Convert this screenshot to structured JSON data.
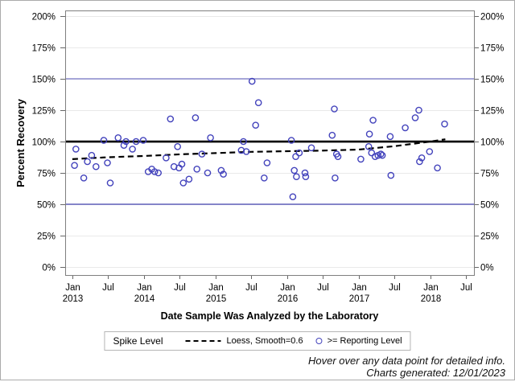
{
  "page": {
    "footer_line1": "Hover over any data point for detailed info.",
    "footer_line2": "Charts generated: 12/01/2023"
  },
  "legend": {
    "title": "Spike Level",
    "items": [
      {
        "swatch": "dashed-line",
        "label": "Loess, Smooth=0.6"
      },
      {
        "swatch": "open-circle",
        "label": ">= Reporting Level"
      }
    ]
  },
  "colors": {
    "marker": "#4343bc",
    "upper_limit_line": "#8b8bce",
    "lower_limit_line": "#6060bb",
    "spike_line": "#000000",
    "loess_line": "#000000",
    "grid": "#e9e9e9",
    "frame": "#7f7f7f",
    "tick": "#666666"
  },
  "chart_data": {
    "type": "scatter",
    "title": "",
    "xlabel": "Date Sample Was Analyzed by the Laboratory",
    "ylabel": "Percent Recovery",
    "xlim": [
      2012.9,
      2018.61
    ],
    "ylim": [
      -6.4,
      204.5
    ],
    "grid": true,
    "legend_position": "bottom",
    "y_ticks": [
      {
        "label": "0%",
        "value": 0
      },
      {
        "label": "25%",
        "value": 25
      },
      {
        "label": "50%",
        "value": 50
      },
      {
        "label": "75%",
        "value": 75
      },
      {
        "label": "100%",
        "value": 100
      },
      {
        "label": "125%",
        "value": 125
      },
      {
        "label": "150%",
        "value": 150
      },
      {
        "label": "175%",
        "value": 175
      },
      {
        "label": "200%",
        "value": 200
      }
    ],
    "x_ticks": [
      {
        "label": "Jan",
        "year": "2013",
        "value": 2013.0
      },
      {
        "label": "Jul",
        "year": "",
        "value": 2013.5
      },
      {
        "label": "Jan",
        "year": "2014",
        "value": 2014.0
      },
      {
        "label": "Jul",
        "year": "",
        "value": 2014.5
      },
      {
        "label": "Jan",
        "year": "2015",
        "value": 2015.0
      },
      {
        "label": "Jul",
        "year": "",
        "value": 2015.5
      },
      {
        "label": "Jan",
        "year": "2016",
        "value": 2016.0
      },
      {
        "label": "Jul",
        "year": "",
        "value": 2016.5
      },
      {
        "label": "Jan",
        "year": "2017",
        "value": 2017.0
      },
      {
        "label": "Jul",
        "year": "",
        "value": 2017.5
      },
      {
        "label": "Jan",
        "year": "2018",
        "value": 2018.0
      },
      {
        "label": "Jul",
        "year": "",
        "value": 2018.5
      }
    ],
    "reference_lines": [
      {
        "name": "upper-control-limit",
        "value": 150,
        "color_key": "upper_limit_line",
        "width": 1.5
      },
      {
        "name": "spike-level",
        "label": "Spike Level",
        "value": 100,
        "color_key": "spike_line",
        "width": 2.6
      },
      {
        "name": "lower-control-limit",
        "value": 50,
        "color_key": "lower_limit_line",
        "width": 1.5
      }
    ],
    "loess": {
      "name": "Loess, Smooth=0.6",
      "points": [
        [
          2013.0,
          86.0
        ],
        [
          2013.5,
          87.5
        ],
        [
          2014.0,
          88.5
        ],
        [
          2014.5,
          89.8
        ],
        [
          2015.0,
          90.8
        ],
        [
          2015.5,
          91.8
        ],
        [
          2016.0,
          92.3
        ],
        [
          2016.5,
          92.8
        ],
        [
          2017.0,
          93.6
        ],
        [
          2017.5,
          96.3
        ],
        [
          2018.0,
          100.0
        ],
        [
          2018.21,
          101.8
        ]
      ]
    },
    "series": [
      {
        "name": ">= Reporting Level",
        "marker": "open-circle",
        "points": [
          [
            2013.03,
            81
          ],
          [
            2013.05,
            94
          ],
          [
            2013.16,
            71
          ],
          [
            2013.21,
            84
          ],
          [
            2013.27,
            89
          ],
          [
            2013.33,
            80
          ],
          [
            2013.44,
            101
          ],
          [
            2013.49,
            83
          ],
          [
            2013.53,
            67
          ],
          [
            2013.64,
            103
          ],
          [
            2013.72,
            97
          ],
          [
            2013.75,
            100
          ],
          [
            2013.84,
            94
          ],
          [
            2013.89,
            100
          ],
          [
            2013.99,
            101
          ],
          [
            2014.06,
            76
          ],
          [
            2014.11,
            78
          ],
          [
            2014.15,
            76
          ],
          [
            2014.2,
            75
          ],
          [
            2014.31,
            87
          ],
          [
            2014.37,
            118
          ],
          [
            2014.42,
            80
          ],
          [
            2014.47,
            96
          ],
          [
            2014.49,
            79
          ],
          [
            2014.53,
            82
          ],
          [
            2014.55,
            67
          ],
          [
            2014.63,
            70
          ],
          [
            2014.72,
            119
          ],
          [
            2014.74,
            78
          ],
          [
            2014.81,
            90
          ],
          [
            2014.89,
            75
          ],
          [
            2014.93,
            103
          ],
          [
            2015.08,
            77
          ],
          [
            2015.11,
            74
          ],
          [
            2015.36,
            93
          ],
          [
            2015.39,
            100
          ],
          [
            2015.43,
            92
          ],
          [
            2015.51,
            148
          ],
          [
            2015.56,
            113
          ],
          [
            2015.6,
            131
          ],
          [
            2015.68,
            71
          ],
          [
            2015.72,
            83
          ],
          [
            2016.06,
            101
          ],
          [
            2016.08,
            56
          ],
          [
            2016.1,
            77
          ],
          [
            2016.12,
            88
          ],
          [
            2016.13,
            72
          ],
          [
            2016.17,
            91
          ],
          [
            2016.25,
            75
          ],
          [
            2016.26,
            72
          ],
          [
            2016.34,
            95
          ],
          [
            2016.63,
            105
          ],
          [
            2016.66,
            126
          ],
          [
            2016.67,
            71
          ],
          [
            2016.69,
            90
          ],
          [
            2016.71,
            88
          ],
          [
            2017.03,
            86
          ],
          [
            2017.14,
            96
          ],
          [
            2017.15,
            106
          ],
          [
            2017.18,
            91
          ],
          [
            2017.2,
            117
          ],
          [
            2017.23,
            88
          ],
          [
            2017.27,
            89
          ],
          [
            2017.31,
            90
          ],
          [
            2017.33,
            89
          ],
          [
            2017.44,
            104
          ],
          [
            2017.45,
            73
          ],
          [
            2017.65,
            111
          ],
          [
            2017.79,
            119
          ],
          [
            2017.84,
            125
          ],
          [
            2017.85,
            84
          ],
          [
            2017.88,
            87
          ],
          [
            2017.99,
            92
          ],
          [
            2018.1,
            79
          ],
          [
            2018.2,
            114
          ]
        ]
      }
    ]
  }
}
